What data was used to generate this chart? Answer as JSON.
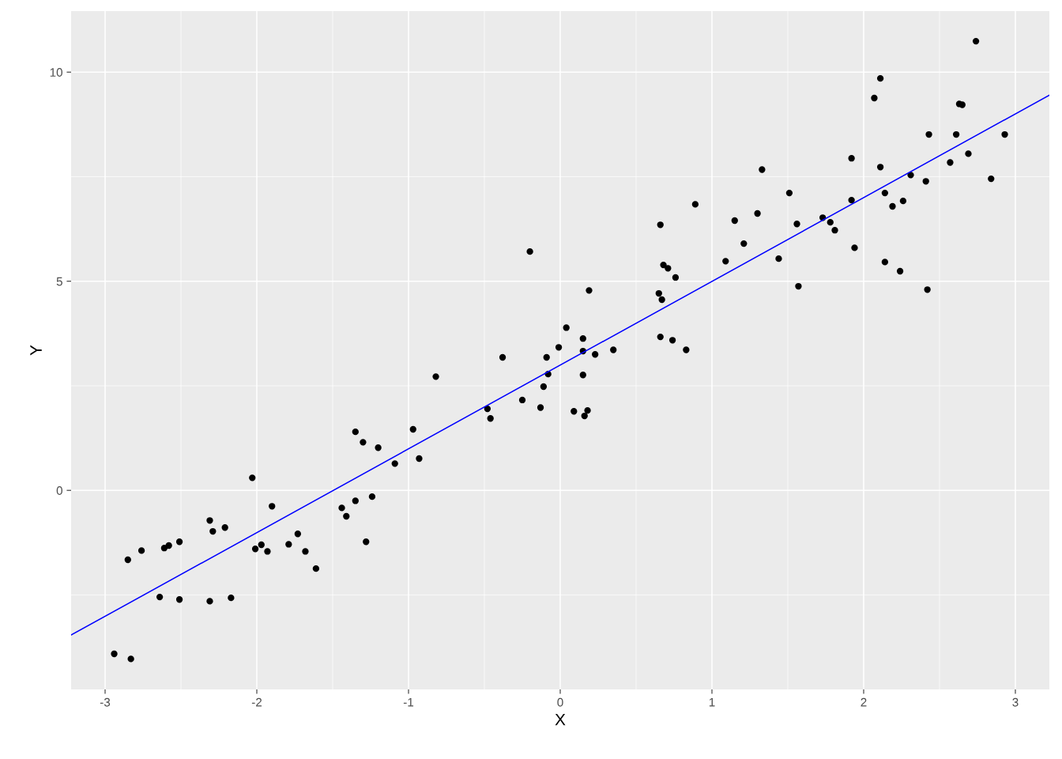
{
  "chart_data": {
    "type": "scatter",
    "xlabel": "X",
    "ylabel": "Y",
    "xlim": [
      -3.224,
      3.224
    ],
    "ylim": [
      -4.76,
      11.46
    ],
    "xticks": [
      -3,
      -2,
      -1,
      0,
      1,
      2,
      3
    ],
    "yticks": [
      0,
      5,
      10
    ],
    "grid": true,
    "series": [
      {
        "marker": "circle",
        "color": "#000000",
        "x": [
          -2.94,
          -2.83,
          -2.85,
          -2.76,
          -2.64,
          -2.61,
          -2.58,
          -2.51,
          -2.51,
          -2.31,
          -2.31,
          -2.29,
          -2.21,
          -2.17,
          -2.03,
          -2.01,
          -1.97,
          -1.93,
          -1.9,
          -1.79,
          -1.73,
          -1.68,
          -1.61,
          -1.44,
          -1.41,
          -1.35,
          -1.35,
          -1.3,
          -1.28,
          -1.24,
          -1.2,
          -1.09,
          -0.97,
          -0.93,
          -0.82,
          -0.48,
          -0.46,
          -0.38,
          -0.25,
          -0.2,
          -0.13,
          -0.11,
          -0.09,
          -0.08,
          -0.01,
          0.04,
          0.09,
          0.15,
          0.15,
          0.15,
          0.16,
          0.18,
          0.19,
          0.23,
          0.35,
          0.65,
          0.66,
          0.66,
          0.67,
          0.68,
          0.71,
          0.74,
          0.76,
          0.83,
          0.89,
          1.09,
          1.15,
          1.21,
          1.3,
          1.33,
          1.44,
          1.51,
          1.56,
          1.57,
          1.73,
          1.78,
          1.81,
          1.92,
          1.92,
          1.94,
          2.07,
          2.11,
          2.11,
          2.14,
          2.14,
          2.19,
          2.24,
          2.26,
          2.31,
          2.41,
          2.42,
          2.43,
          2.57,
          2.61,
          2.63,
          2.65,
          2.69,
          2.74,
          2.84,
          2.93
        ],
        "values": [
          -3.91,
          -4.03,
          -1.66,
          -1.44,
          -2.55,
          -1.38,
          -1.32,
          -2.61,
          -1.23,
          -0.72,
          -2.65,
          -0.98,
          -0.89,
          -2.57,
          0.3,
          -1.4,
          -1.3,
          -1.46,
          -0.38,
          -1.29,
          -1.04,
          -1.46,
          -1.87,
          -0.42,
          -0.62,
          1.4,
          -0.25,
          1.15,
          -1.23,
          -0.15,
          1.02,
          0.64,
          1.46,
          0.76,
          2.72,
          1.95,
          1.72,
          3.18,
          2.16,
          5.71,
          1.98,
          2.48,
          3.18,
          2.78,
          3.42,
          3.89,
          1.89,
          3.63,
          3.33,
          2.76,
          1.78,
          1.91,
          4.78,
          3.25,
          3.36,
          4.71,
          3.67,
          6.35,
          4.56,
          5.39,
          5.31,
          3.59,
          5.09,
          3.36,
          6.84,
          5.48,
          6.45,
          5.9,
          6.62,
          7.67,
          5.54,
          7.11,
          6.37,
          4.88,
          6.52,
          6.41,
          6.22,
          7.94,
          6.94,
          5.8,
          9.38,
          9.85,
          7.73,
          7.11,
          5.46,
          6.79,
          5.24,
          6.92,
          7.54,
          7.39,
          4.8,
          8.51,
          7.84,
          8.51,
          9.24,
          9.22,
          8.05,
          10.74,
          7.45,
          8.51
        ]
      },
      {
        "type": "line",
        "color": "#0000ff",
        "x": [
          -3.224,
          3.224
        ],
        "values": [
          -3.46,
          9.45
        ]
      }
    ]
  }
}
